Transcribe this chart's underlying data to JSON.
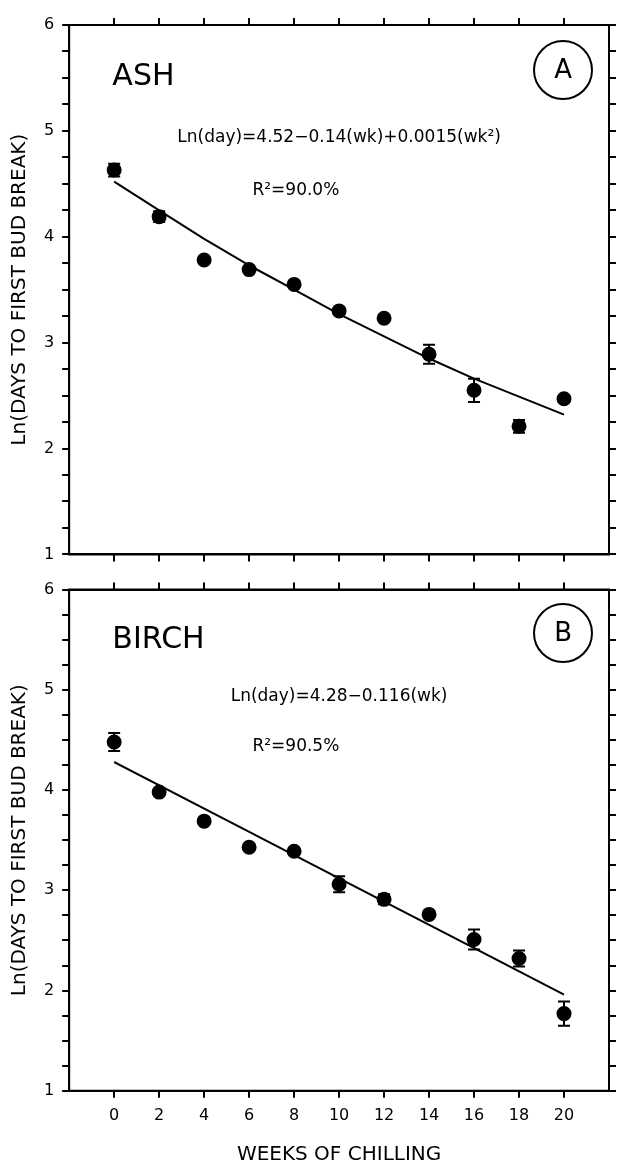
{
  "chart_data": [
    {
      "type": "scatter",
      "ylabel": "Ln(DAYS TO FIRST BUD BREAK)",
      "annotations": [
        "ASH",
        "A",
        "Ln(day)=4.52−0.14(wk)+0.0015(wk²)",
        "R²=90.0%"
      ],
      "xlim": [
        -2,
        22
      ],
      "xticks": [
        0,
        2,
        4,
        6,
        8,
        10,
        12,
        14,
        16,
        18,
        20
      ],
      "ylim": [
        1,
        6
      ],
      "yticks": [
        1,
        {
          "value": 1.25,
          "label": null
        },
        {
          "value": 1.5,
          "label": null
        },
        {
          "value": 1.75,
          "label": null
        },
        2,
        {
          "value": 2.25,
          "label": null
        },
        {
          "value": 2.5,
          "label": null
        },
        {
          "value": 2.75,
          "label": null
        },
        3,
        {
          "value": 3.25,
          "label": null
        },
        {
          "value": 3.5,
          "label": null
        },
        {
          "value": 3.75,
          "label": null
        },
        4,
        {
          "value": 4.25,
          "label": null
        },
        {
          "value": 4.5,
          "label": null
        },
        {
          "value": 4.75,
          "label": null
        },
        5,
        {
          "value": 5.25,
          "label": null
        },
        {
          "value": 5.5,
          "label": null
        },
        {
          "value": 5.75,
          "label": null
        },
        6
      ],
      "tick_labels": "y",
      "legend": false,
      "marker": "circle",
      "series": [
        {
          "type": "scatter",
          "color": "#000000",
          "x": [
            0,
            2,
            4,
            6,
            8,
            10,
            12,
            14,
            16,
            18,
            20
          ],
          "values": [
            4.63,
            4.19,
            3.78,
            3.69,
            3.55,
            3.3,
            3.23,
            2.89,
            2.55,
            2.21,
            2.47
          ],
          "errors": [
            0.06,
            0.05,
            null,
            null,
            null,
            null,
            null,
            0.09,
            0.11,
            0.06,
            null
          ]
        },
        {
          "type": "line",
          "color": "#000000",
          "marker": "none",
          "x": [
            0,
            2,
            4,
            6,
            8,
            10,
            12,
            14,
            16,
            18,
            20
          ],
          "values": [
            4.52,
            4.25,
            3.98,
            3.73,
            3.5,
            3.27,
            3.06,
            2.85,
            2.66,
            2.49,
            2.32
          ]
        }
      ]
    },
    {
      "type": "scatter",
      "ylabel": "Ln(DAYS TO FIRST BUD BREAK)",
      "xlabel": "WEEKS OF CHILLING",
      "annotations": [
        "BIRCH",
        "B",
        "Ln(day)=4.28−0.116(wk)",
        "R²=90.5%"
      ],
      "xlim": [
        -2,
        22
      ],
      "xticks": [
        0,
        2,
        4,
        6,
        8,
        10,
        12,
        14,
        16,
        18,
        20
      ],
      "ylim": [
        1,
        6
      ],
      "yticks": [
        1,
        {
          "value": 1.25,
          "label": null
        },
        {
          "value": 1.5,
          "label": null
        },
        {
          "value": 1.75,
          "label": null
        },
        2,
        {
          "value": 2.25,
          "label": null
        },
        {
          "value": 2.5,
          "label": null
        },
        {
          "value": 2.75,
          "label": null
        },
        3,
        {
          "value": 3.25,
          "label": null
        },
        {
          "value": 3.5,
          "label": null
        },
        {
          "value": 3.75,
          "label": null
        },
        4,
        {
          "value": 4.25,
          "label": null
        },
        {
          "value": 4.5,
          "label": null
        },
        {
          "value": 4.75,
          "label": null
        },
        5,
        {
          "value": 5.25,
          "label": null
        },
        {
          "value": 5.5,
          "label": null
        },
        {
          "value": 5.75,
          "label": null
        },
        6
      ],
      "legend": false,
      "marker": "circle",
      "series": [
        {
          "type": "scatter",
          "color": "#000000",
          "x": [
            0,
            2,
            4,
            6,
            8,
            10,
            12,
            14,
            16,
            18,
            20
          ],
          "values": [
            4.48,
            3.98,
            3.69,
            3.43,
            3.39,
            3.06,
            2.91,
            2.76,
            2.51,
            2.32,
            1.77
          ],
          "errors": [
            0.09,
            null,
            null,
            null,
            null,
            0.08,
            0.05,
            null,
            0.1,
            0.08,
            0.12
          ]
        },
        {
          "type": "line",
          "color": "#000000",
          "marker": "none",
          "x": [
            0,
            20
          ],
          "values": [
            4.28,
            1.96
          ]
        }
      ]
    }
  ]
}
